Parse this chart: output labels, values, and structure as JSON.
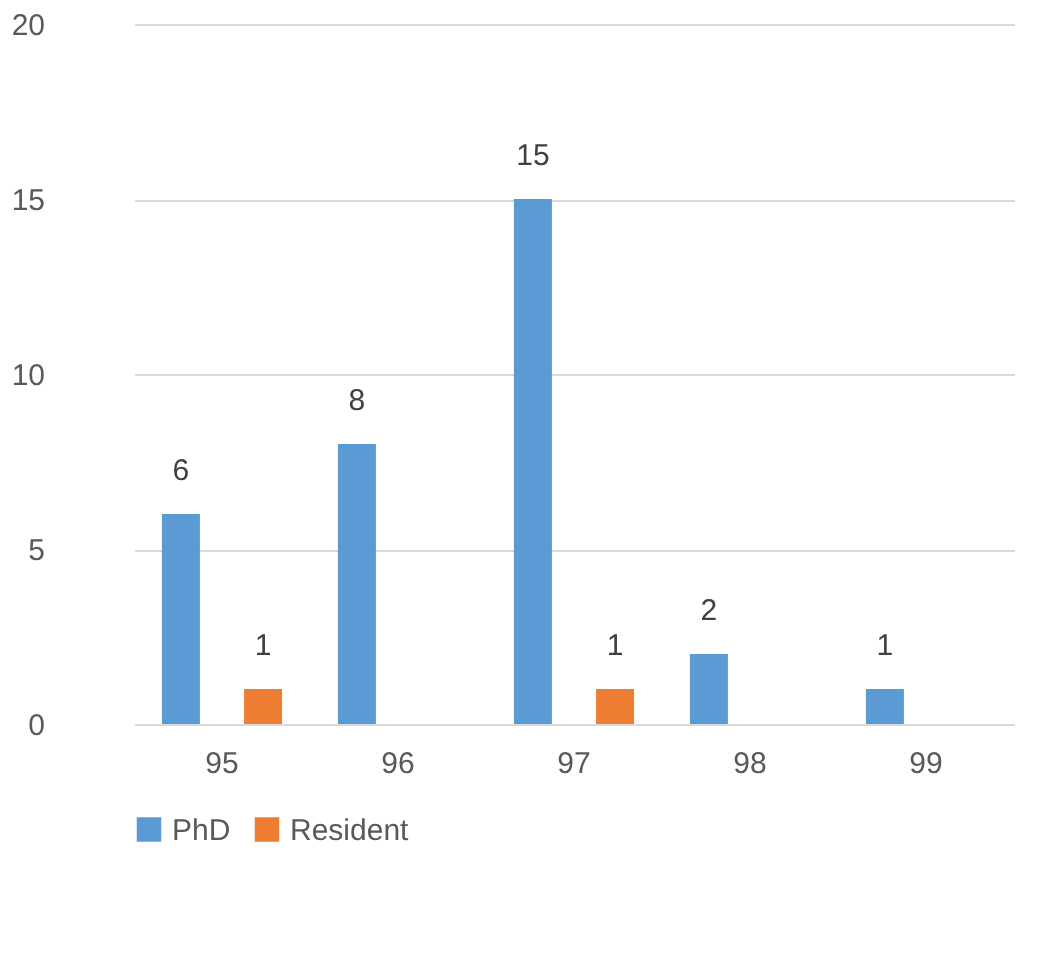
{
  "chart_data": {
    "type": "bar",
    "categories": [
      "95",
      "96",
      "97",
      "98",
      "99"
    ],
    "series": [
      {
        "name": "PhD",
        "color": "#5b9bd5",
        "values": [
          6,
          8,
          15,
          2,
          1
        ],
        "value_labels": [
          "6",
          "8",
          "15",
          "2",
          "1"
        ]
      },
      {
        "name": "Resident",
        "color": "#ed7d31",
        "values": [
          1,
          null,
          1,
          null,
          null
        ],
        "value_labels": [
          "1",
          null,
          "1",
          null,
          null
        ]
      }
    ],
    "ylim": [
      0,
      20
    ],
    "yticks": [
      0,
      5,
      10,
      15,
      20
    ],
    "grid": "y",
    "legend": "bottom"
  }
}
